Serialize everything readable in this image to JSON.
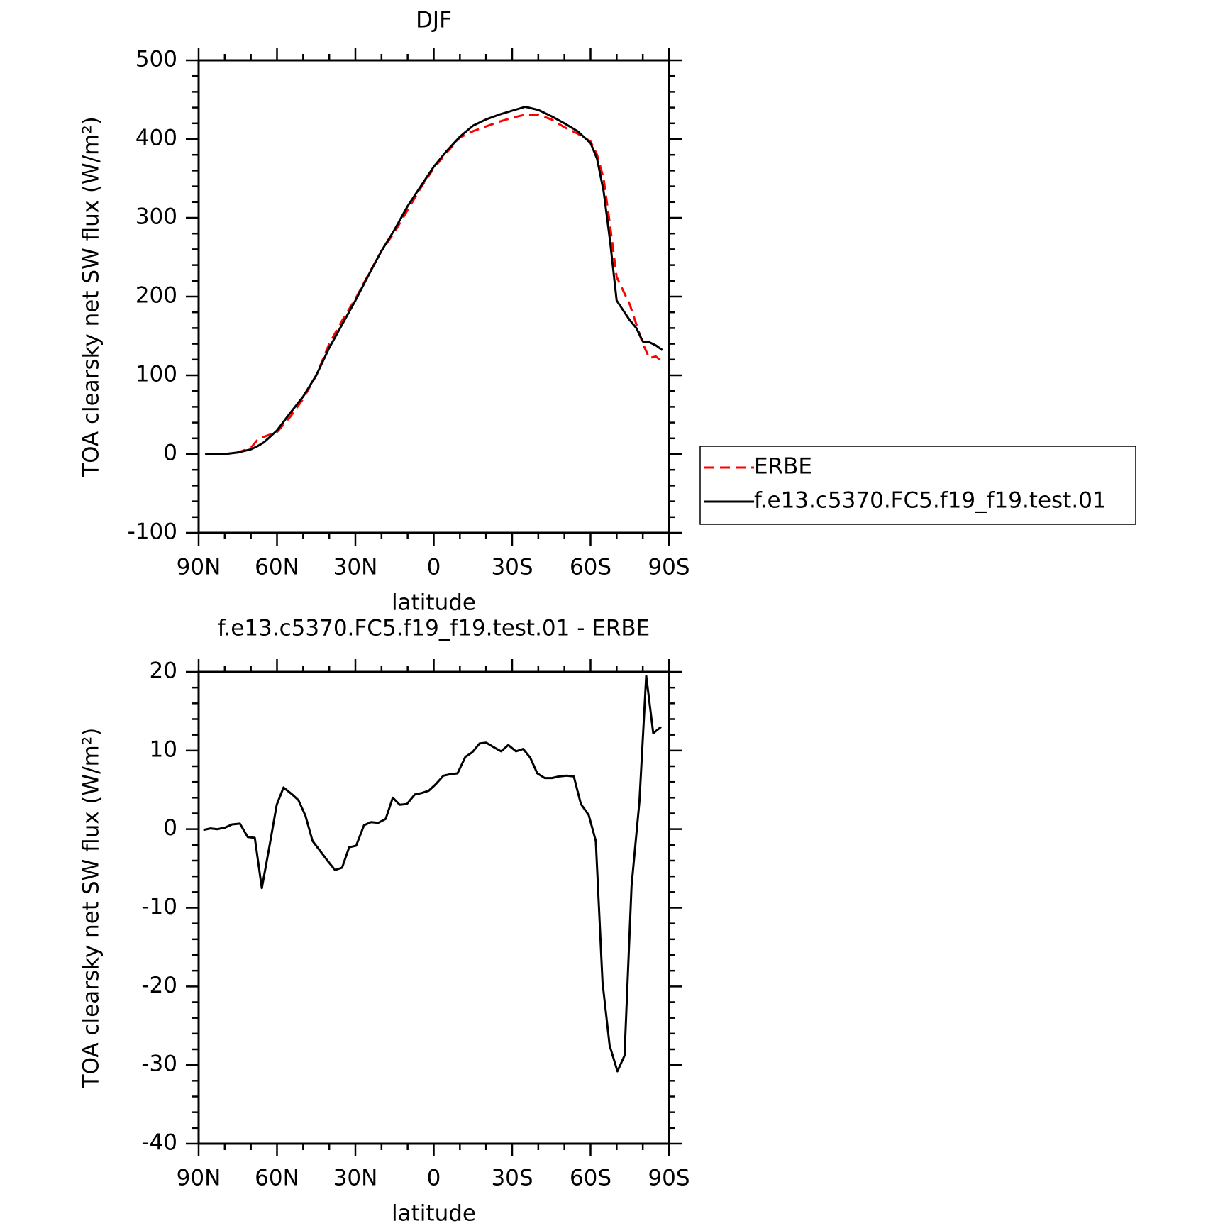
{
  "chart_data": [
    {
      "type": "line",
      "title": "DJF",
      "xlabel": "latitude",
      "ylabel": "TOA clearsky net SW flux (W/m²)",
      "xlim": [
        90,
        -90
      ],
      "ylim": [
        -100,
        500
      ],
      "xticks": [
        {
          "value": 90,
          "label": "90N"
        },
        {
          "value": 60,
          "label": "60N"
        },
        {
          "value": 30,
          "label": "30N"
        },
        0,
        {
          "value": -30,
          "label": "30S"
        },
        {
          "value": -60,
          "label": "60S"
        },
        {
          "value": -90,
          "label": "90S"
        }
      ],
      "yticks": [
        -100,
        0,
        100,
        200,
        300,
        400,
        500
      ],
      "legend": "outside-right",
      "x": [
        87.5,
        80,
        75,
        70,
        67.5,
        65,
        60,
        55,
        50,
        45,
        40,
        35,
        30,
        25,
        20,
        15,
        10,
        5,
        0,
        -5,
        -10,
        -15,
        -20,
        -25,
        -30,
        -35,
        -40,
        -45,
        -50,
        -55,
        -60,
        -62.5,
        -65,
        -67.5,
        -70,
        -75,
        -77.5,
        -80,
        -82.5,
        -85,
        -87.5
      ],
      "series": [
        {
          "name": "ERBE",
          "color": "#ff0000",
          "dashed": true,
          "values": [
            0,
            0,
            2,
            8,
            18,
            22,
            28,
            47,
            70,
            100,
            140,
            170,
            197,
            228,
            258,
            282,
            310,
            338,
            363,
            383,
            402,
            410,
            416,
            422,
            427,
            431,
            431,
            425,
            415,
            407,
            397,
            380,
            350,
            290,
            225,
            190,
            165,
            140,
            122,
            124,
            117
          ]
        },
        {
          "name": "f.e13.c5370.FC5.f19_f19.test.01",
          "color": "#000000",
          "dashed": false,
          "values": [
            0,
            0,
            2,
            6,
            10,
            15,
            30,
            52,
            73,
            100,
            135,
            165,
            195,
            227,
            258,
            285,
            315,
            340,
            365,
            385,
            403,
            417,
            425,
            431,
            436,
            441,
            437,
            429,
            420,
            410,
            395,
            375,
            334,
            270,
            195,
            170,
            160,
            143,
            142,
            138,
            132
          ]
        }
      ]
    },
    {
      "type": "line",
      "title": "f.e13.c5370.FC5.f19_f19.test.01 - ERBE",
      "xlabel": "latitude",
      "ylabel": "TOA clearsky net SW flux (W/m²)",
      "xlim": [
        90,
        -90
      ],
      "ylim": [
        -40,
        20
      ],
      "xticks": [
        {
          "value": 90,
          "label": "90N"
        },
        {
          "value": 60,
          "label": "60N"
        },
        {
          "value": 30,
          "label": "30N"
        },
        0,
        {
          "value": -30,
          "label": "30S"
        },
        {
          "value": -60,
          "label": "60S"
        },
        {
          "value": -90,
          "label": "90S"
        }
      ],
      "yticks": [
        -40,
        -30,
        -20,
        -10,
        0,
        10,
        20
      ],
      "color": "#000000",
      "x": [
        88.2,
        85.5,
        82.8,
        79.9,
        77.2,
        74.2,
        71.2,
        68.5,
        65.8,
        62.8,
        60.1,
        57.5,
        54.5,
        51.8,
        49.1,
        46.4,
        43.4,
        40.7,
        37.8,
        35.1,
        32.4,
        29.7,
        26.7,
        24.0,
        21.3,
        18.4,
        15.7,
        13.0,
        10.3,
        7.3,
        4.6,
        1.9,
        -0.7,
        -3.7,
        -6.4,
        -9.1,
        -12.1,
        -14.8,
        -17.5,
        -20.1,
        -23.1,
        -25.8,
        -28.5,
        -31.5,
        -34.2,
        -36.9,
        -39.6,
        -42.5,
        -45.2,
        -47.9,
        -50.9,
        -53.6,
        -56.3,
        -59.3,
        -62.0,
        -64.6,
        -67.3,
        -70.3,
        -73.0,
        -75.7,
        -78.7,
        -81.3,
        -84.0,
        -87.0
      ],
      "values": [
        -0.1,
        0.1,
        0,
        0.2,
        0.6,
        0.7,
        -1.0,
        -1.1,
        -7.5,
        -2.0,
        3.1,
        5.3,
        4.5,
        3.7,
        1.7,
        -1.5,
        -2.8,
        -4.0,
        -5.2,
        -4.9,
        -2.3,
        -2.1,
        0.5,
        0.9,
        0.8,
        1.3,
        4.0,
        3.1,
        3.2,
        4.4,
        4.6,
        4.9,
        5.7,
        6.8,
        7.0,
        7.1,
        9.2,
        9.8,
        10.9,
        11.0,
        10.4,
        9.9,
        10.7,
        9.9,
        10.2,
        9.1,
        7.1,
        6.5,
        6.5,
        6.7,
        6.8,
        6.7,
        3.2,
        1.8,
        -1.5,
        -19.5,
        -27.5,
        -30.8,
        -28.8,
        -7.2,
        3.5,
        19.5,
        12.2,
        13.0
      ]
    }
  ]
}
